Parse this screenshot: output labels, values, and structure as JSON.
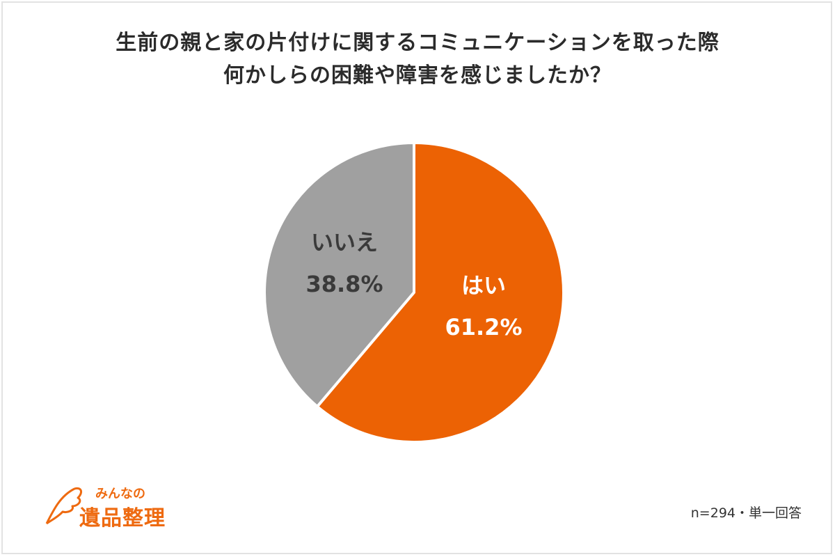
{
  "chart_data": {
    "type": "pie",
    "title_lines": [
      "生前の親と家の片付けに関するコミュニケーションを取った際",
      "何かしらの困難や障害を感じましたか？"
    ],
    "slices": [
      {
        "label": "はい",
        "value": 61.2,
        "value_label": "61.2%",
        "color": "#ec6204"
      },
      {
        "label": "いいえ",
        "value": 38.8,
        "value_label": "38.8%",
        "color": "#a0a0a0"
      }
    ],
    "start": "top",
    "direction": "clockwise",
    "note": "n=294・単一回答"
  },
  "logo": {
    "line1": "みんなの",
    "line2": "遺品整理",
    "color": "#ee6a10"
  }
}
